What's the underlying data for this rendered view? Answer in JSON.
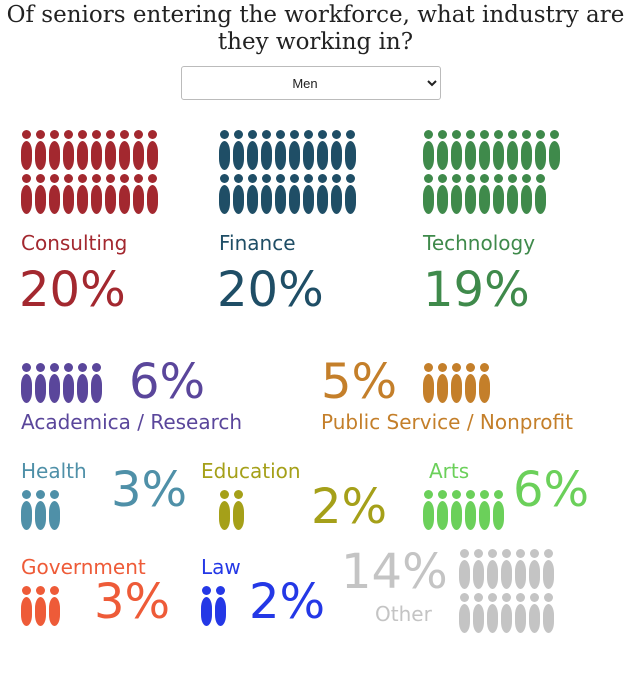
{
  "title": "Of seniors entering the workforce, what industry are they working in?",
  "select": {
    "value": "Men",
    "options": [
      "Men"
    ]
  },
  "industries": [
    {
      "key": "consulting",
      "label": "Consulting",
      "percent": "20%",
      "icons": 20,
      "color": "#a3282f",
      "icon": "person-icon"
    },
    {
      "key": "finance",
      "label": "Finance",
      "percent": "20%",
      "icons": 20,
      "color": "#1f4e66",
      "icon": "person-icon"
    },
    {
      "key": "technology",
      "label": "Technology",
      "percent": "19%",
      "icons": 19,
      "color": "#3f8a4b",
      "icon": "person-icon"
    },
    {
      "key": "academica",
      "label": "Academica / Research",
      "percent": "6%",
      "icons": 6,
      "color": "#5a469b",
      "icon": "person-icon"
    },
    {
      "key": "public",
      "label": "Public Service / Nonprofit",
      "percent": "5%",
      "icons": 5,
      "color": "#c47f2a",
      "icon": "person-icon"
    },
    {
      "key": "health",
      "label": "Health",
      "percent": "3%",
      "icons": 3,
      "color": "#4f90a8",
      "icon": "person-icon"
    },
    {
      "key": "education",
      "label": "Education",
      "percent": "2%",
      "icons": 2,
      "color": "#a5a019",
      "icon": "person-icon"
    },
    {
      "key": "arts",
      "label": "Arts",
      "percent": "6%",
      "icons": 6,
      "color": "#6bd05a",
      "icon": "person-icon"
    },
    {
      "key": "government",
      "label": "Government",
      "percent": "3%",
      "icons": 3,
      "color": "#ee5b38",
      "icon": "person-icon"
    },
    {
      "key": "law",
      "label": "Law",
      "percent": "2%",
      "icons": 2,
      "color": "#2438e6",
      "icon": "person-icon"
    },
    {
      "key": "other",
      "label": "Other",
      "percent": "14%",
      "icons": 14,
      "color": "#c4c4c4",
      "icon": "person-icon"
    }
  ]
}
